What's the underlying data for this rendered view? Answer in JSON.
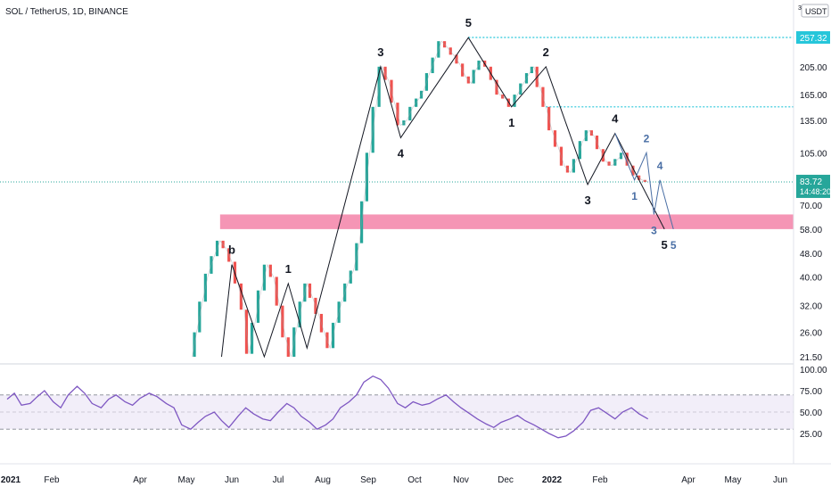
{
  "chart_data": [
    {
      "type": "line",
      "title": "SOL / TetherUS, 1D, BINANCE",
      "currency": "USDT",
      "scale_indicator": "3",
      "x_ticks": [
        "2021",
        "Feb",
        "Apr",
        "May",
        "Jun",
        "Jul",
        "Aug",
        "Sep",
        "Oct",
        "Nov",
        "Dec",
        "2022",
        "Feb",
        "Apr",
        "May",
        "Jun"
      ],
      "y_scale": "log",
      "y_ticks": [
        257.32,
        205.0,
        165.0,
        135.0,
        105.0,
        83.72,
        70.0,
        58.0,
        48.0,
        40.0,
        32.0,
        26.0,
        21.5
      ],
      "y_tick_labels": [
        "257.32",
        "205.00",
        "165.00",
        "135.00",
        "105.00",
        "83.72",
        "70.00",
        "58.00",
        "48.00",
        "40.00",
        "32.00",
        "26.00",
        "21.50"
      ],
      "last_price": "83.72",
      "countdown": "14:48:20",
      "series": [
        {
          "name": "",
          "values": [
            21.5,
            26,
            33,
            41,
            47,
            53,
            50,
            45,
            38,
            31,
            22,
            28,
            36,
            44,
            40,
            32,
            25,
            21.5,
            27,
            33,
            38,
            34,
            30,
            26,
            23,
            28,
            33,
            38,
            42,
            52,
            72,
            105,
            150,
            205,
            185,
            155,
            130,
            135,
            150,
            160,
            170,
            195,
            220,
            250,
            238,
            225,
            210,
            190,
            180,
            200,
            215,
            205,
            185,
            165,
            160,
            150,
            165,
            180,
            195,
            205,
            175,
            150,
            125,
            110,
            95,
            90,
            100,
            115,
            125,
            120,
            108,
            98,
            95,
            100,
            105,
            95,
            88,
            85,
            83.72
          ]
        }
      ],
      "horizontal_levels": [
        257.32,
        150
      ],
      "support_zone": [
        58,
        65
      ],
      "wave_path": [
        {
          "x": "2021-05-25",
          "y": 21.5,
          "label": ""
        },
        {
          "x": "2021-06-01",
          "y": 44,
          "label": "b"
        },
        {
          "x": "2021-06-22",
          "y": 21.5,
          "label": ""
        },
        {
          "x": "2021-07-08",
          "y": 38,
          "label": "1"
        },
        {
          "x": "2021-07-21",
          "y": 23,
          "label": ""
        },
        {
          "x": "2021-09-09",
          "y": 205,
          "label": "3"
        },
        {
          "x": "2021-09-22",
          "y": 118,
          "label": "4"
        },
        {
          "x": "2021-11-06",
          "y": 257,
          "label": "5"
        },
        {
          "x": "2021-12-05",
          "y": 150,
          "label": "1"
        },
        {
          "x": "2021-12-28",
          "y": 205,
          "label": "2"
        },
        {
          "x": "2022-01-24",
          "y": 82,
          "label": "3"
        },
        {
          "x": "2022-02-11",
          "y": 122,
          "label": "4"
        },
        {
          "x": "2022-03-16",
          "y": 58,
          "label": "5"
        }
      ],
      "sub_wave_path": [
        {
          "x": "2022-02-11",
          "y": 122,
          "label": ""
        },
        {
          "x": "2022-02-24",
          "y": 85,
          "label": "1"
        },
        {
          "x": "2022-03-04",
          "y": 105,
          "label": "2"
        },
        {
          "x": "2022-03-09",
          "y": 65,
          "label": "3"
        },
        {
          "x": "2022-03-13",
          "y": 85,
          "label": "4"
        },
        {
          "x": "2022-03-22",
          "y": 58,
          "label": "5"
        }
      ],
      "colors": {
        "wave": "#131722",
        "sub_wave": "#4a6fa5",
        "zone": "#f48fb1",
        "levels": "#26c6da",
        "rsi": "#7e57c2",
        "last_price_bg": "#26a69a"
      }
    },
    {
      "type": "line",
      "indicator": "RSI",
      "y_ticks": [
        "100.00",
        "75.00",
        "50.00",
        "25.00"
      ],
      "ylim": [
        0,
        100
      ],
      "band": [
        30,
        70
      ],
      "midline": 50,
      "values": [
        65,
        72,
        58,
        60,
        68,
        75,
        62,
        55,
        70,
        80,
        72,
        60,
        55,
        65,
        70,
        62,
        58,
        66,
        72,
        68,
        60,
        55,
        35,
        30,
        38,
        45,
        50,
        40,
        32,
        45,
        55,
        48,
        42,
        40,
        50,
        60,
        55,
        45,
        38,
        30,
        35,
        42,
        55,
        62,
        70,
        85,
        92,
        88,
        78,
        60,
        55,
        62,
        58,
        60,
        65,
        70,
        62,
        55,
        48,
        42,
        36,
        32,
        38,
        42,
        46,
        40,
        35,
        30,
        25,
        20,
        22,
        28,
        38,
        52,
        55,
        48,
        42,
        50,
        55,
        48,
        42
      ]
    }
  ]
}
